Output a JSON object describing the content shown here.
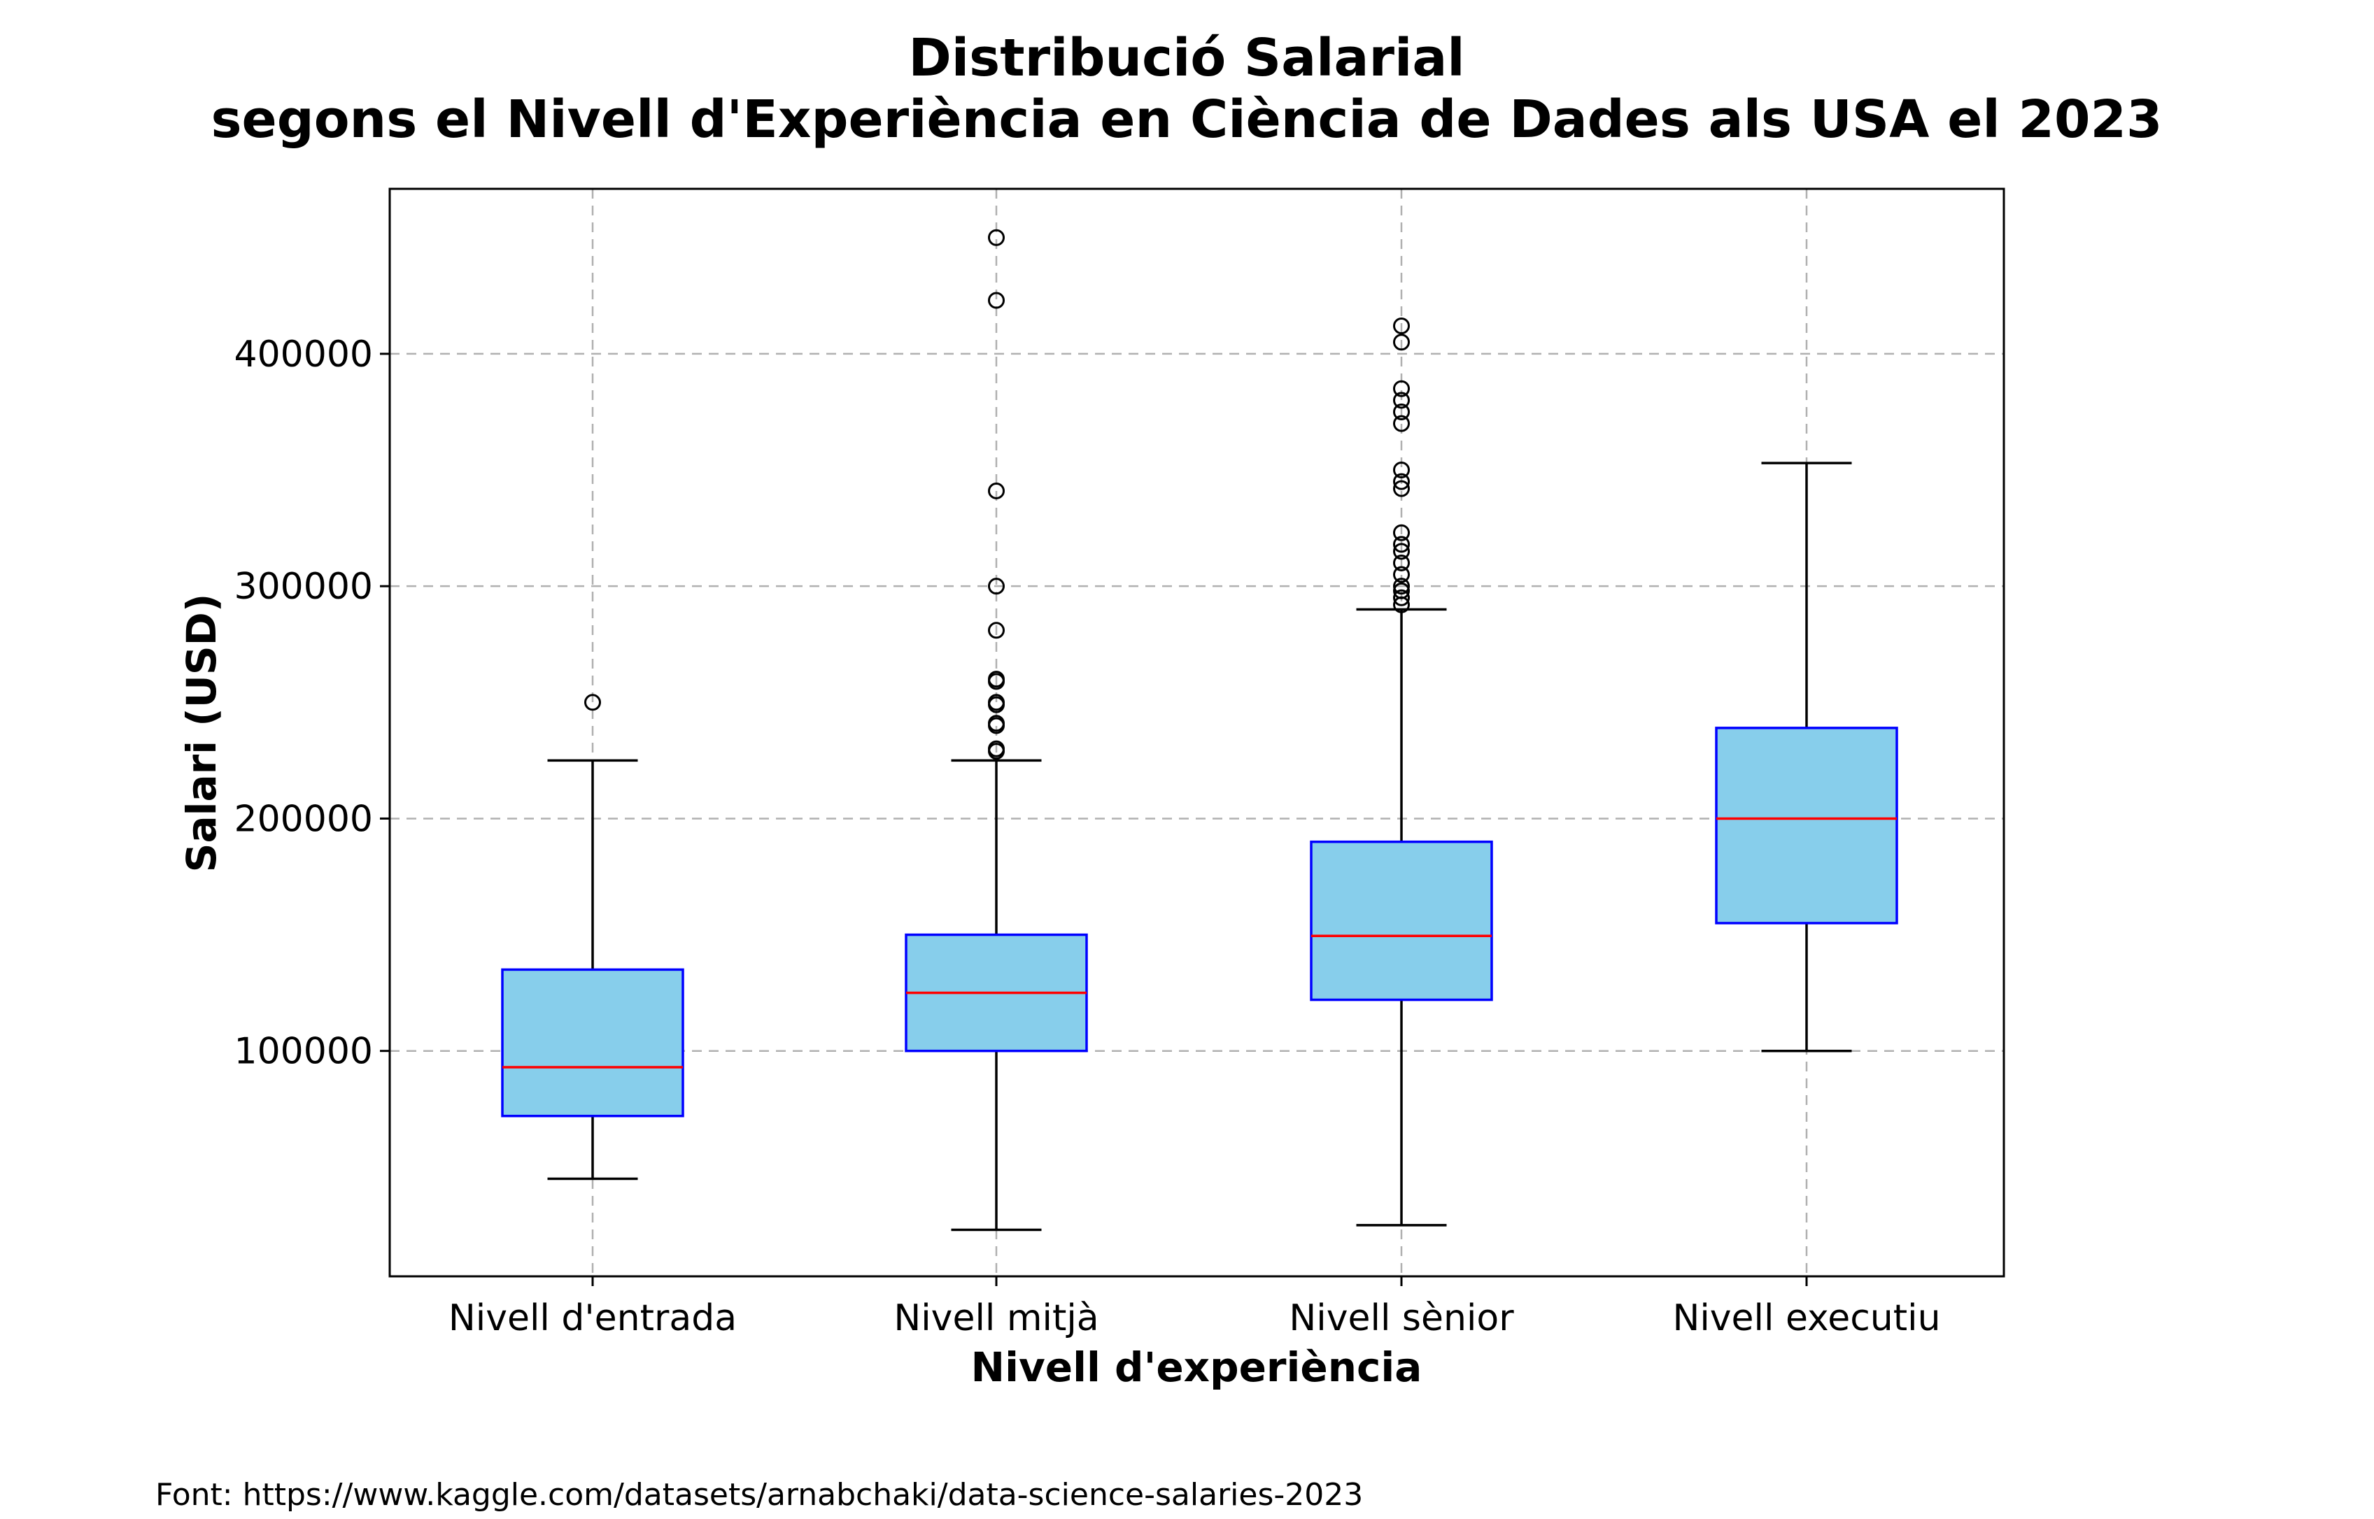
{
  "chart_data": {
    "type": "box",
    "title": "Distribució Salarial\nsegons el Nivell d'Experiència en Ciència de Dades als USA el 2023",
    "xlabel": "Nivell d'experiència",
    "ylabel": "Salari (USD)",
    "ylim": [
      3000,
      471000
    ],
    "yticks": [
      100000,
      200000,
      300000,
      400000
    ],
    "grid": true,
    "categories": [
      "Nivell d'entrada",
      "Nivell mitjà",
      "Nivell sènior",
      "Nivell executiu"
    ],
    "boxes": [
      {
        "whisker_low": 45000,
        "q1": 72000,
        "median": 93000,
        "q3": 135000,
        "whisker_high": 225000,
        "outliers": [
          250000
        ]
      },
      {
        "whisker_low": 23000,
        "q1": 100000,
        "median": 125000,
        "q3": 150000,
        "whisker_high": 225000,
        "outliers": [
          229000,
          230000,
          240000,
          241000,
          249000,
          250000,
          259000,
          260000,
          281000,
          300000,
          341000,
          423000,
          450000
        ]
      },
      {
        "whisker_low": 25000,
        "q1": 122000,
        "median": 149500,
        "q3": 190000,
        "whisker_high": 290000,
        "outliers": [
          292000,
          295000,
          298000,
          300000,
          305000,
          310000,
          315000,
          318000,
          323000,
          342000,
          345000,
          350000,
          370000,
          375000,
          380000,
          385000,
          405000,
          412000
        ]
      },
      {
        "whisker_low": 100000,
        "q1": 155000,
        "median": 200000,
        "q3": 239000,
        "whisker_high": 353000,
        "outliers": []
      }
    ],
    "colors": {
      "box_fill": "#87ceeb",
      "box_edge": "#0000ff",
      "median": "#ff0000",
      "whisker": "#000000",
      "flier": "#000000"
    }
  },
  "source_note": "Font: https://www.kaggle.com/datasets/arnabchaki/data-science-salaries-2023"
}
